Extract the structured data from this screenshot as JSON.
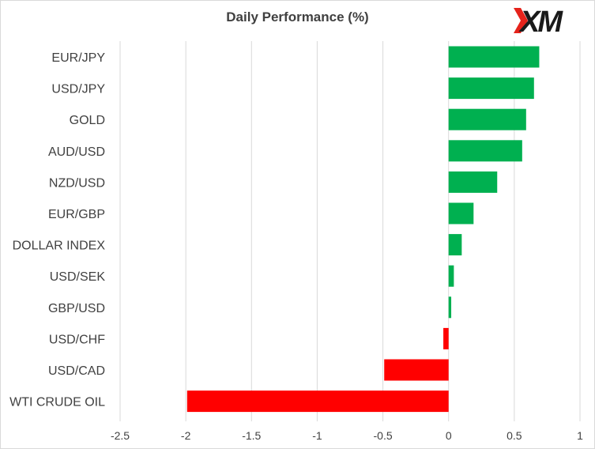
{
  "logo": {
    "text": "XM",
    "accent_color": "#e5231b",
    "text_color": "#1a1a1a"
  },
  "chart_data": {
    "type": "bar",
    "orientation": "horizontal",
    "title": "Daily Performance (%)",
    "categories": [
      "EUR/JPY",
      "USD/JPY",
      "GOLD",
      "AUD/USD",
      "NZD/USD",
      "EUR/GBP",
      "DOLLAR INDEX",
      "USD/SEK",
      "GBP/USD",
      "USD/CHF",
      "USD/CAD",
      "WTI CRUDE OIL"
    ],
    "values": [
      0.69,
      0.65,
      0.59,
      0.56,
      0.37,
      0.19,
      0.1,
      0.04,
      0.02,
      -0.04,
      -0.49,
      -1.99
    ],
    "xlim": [
      -2.5,
      1
    ],
    "xticks": [
      -2.5,
      -2,
      -1.5,
      -1,
      -0.5,
      0,
      0.5,
      1
    ],
    "xtick_labels": [
      "-2.5",
      "-2",
      "-1.5",
      "-1",
      "-0.5",
      "0",
      "0.5",
      "1"
    ],
    "gridlines": "vertical",
    "colors": {
      "positive": "#00b050",
      "negative": "#ff0000",
      "grid": "#d9d9d9",
      "text": "#404040"
    }
  }
}
